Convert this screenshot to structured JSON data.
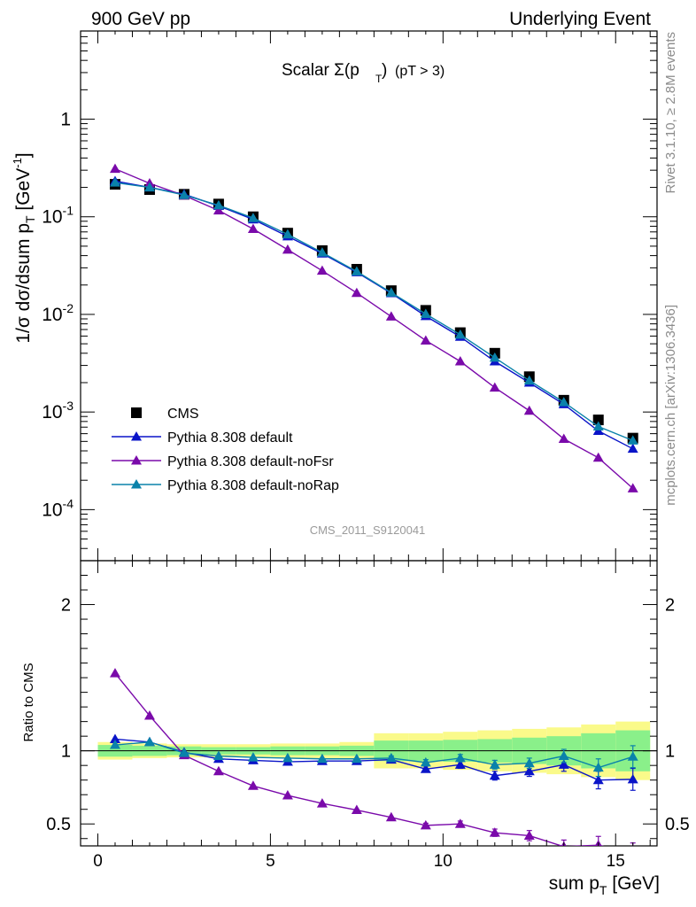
{
  "header": {
    "left": "900 GeV pp",
    "right": "Underlying Event"
  },
  "side_labels": {
    "top": "Rivet 3.1.10, ≥ 2.8M events",
    "bottom": "mcplots.cern.ch [arXiv:1306.3436]"
  },
  "plot_title": {
    "main": "Scalar Σ(p",
    "sub": "T",
    "close": ")",
    "cut": "(pT >  3)"
  },
  "analysis_tag": "CMS_2011_S9120041",
  "colors": {
    "data": "#000000",
    "default": "#0a14c8",
    "noFsr": "#7a0aaa",
    "noRap": "#0a82aa",
    "band_inner": "#8af08a",
    "band_outer": "#fafa8a"
  },
  "chart_data": [
    {
      "type": "scatter",
      "xlabel": "sum p_T [GeV]",
      "ylabel": "1/σ dσ/dsum p_T [GeV^-1]",
      "yscale": "log",
      "xlim": [
        -0.5,
        16.2
      ],
      "ylim": [
        3e-05,
        8
      ],
      "y_ticks": [
        "10^-4",
        "10^-3",
        "10^-2",
        "10^-1",
        "1"
      ],
      "legend_position": "bottom-left",
      "x": [
        0.5,
        1.5,
        2.5,
        3.5,
        4.5,
        5.5,
        6.5,
        7.5,
        8.5,
        9.5,
        10.5,
        11.5,
        12.5,
        13.5,
        14.5,
        15.5
      ],
      "series": [
        {
          "name": "CMS",
          "key": "data",
          "marker": "square",
          "values": [
            0.215,
            0.19,
            0.17,
            0.135,
            0.1,
            0.068,
            0.045,
            0.029,
            0.0175,
            0.011,
            0.0065,
            0.004,
            0.0023,
            0.00132,
            0.00083,
            0.00054
          ]
        },
        {
          "name": "Pythia 8.308 default",
          "key": "default",
          "marker": "triangle",
          "values": [
            0.232,
            0.2,
            0.17,
            0.129,
            0.094,
            0.063,
            0.042,
            0.027,
            0.0165,
            0.0096,
            0.0059,
            0.0033,
            0.002,
            0.0012,
            0.00064,
            0.00042
          ]
        },
        {
          "name": "Pythia 8.308 default-noFsr",
          "key": "noFsr",
          "marker": "triangle",
          "values": [
            0.31,
            0.22,
            0.165,
            0.116,
            0.075,
            0.046,
            0.028,
            0.0166,
            0.0095,
            0.0054,
            0.0033,
            0.00178,
            0.00103,
            0.00053,
            0.00034,
            0.000165
          ]
        },
        {
          "name": "Pythia 8.308 default-noRap",
          "key": "noRap",
          "marker": "triangle",
          "values": [
            0.224,
            0.2,
            0.167,
            0.131,
            0.097,
            0.066,
            0.043,
            0.0275,
            0.0167,
            0.0101,
            0.0062,
            0.0036,
            0.0021,
            0.00126,
            0.00071,
            0.00051
          ]
        }
      ]
    },
    {
      "type": "scatter",
      "xlabel": "sum p_T [GeV]",
      "ylabel": "Ratio to CMS",
      "xlim": [
        -0.5,
        16.2
      ],
      "ylim": [
        0.35,
        2.3
      ],
      "x_ticks": [
        0,
        5,
        10,
        15
      ],
      "y_ticks": [
        0.5,
        1,
        2
      ],
      "x": [
        0.5,
        1.5,
        2.5,
        3.5,
        4.5,
        5.5,
        6.5,
        7.5,
        8.5,
        9.5,
        10.5,
        11.5,
        12.5,
        13.5,
        14.5,
        15.5
      ],
      "uncertainty_bands": {
        "inner": [
          0.04,
          0.035,
          0.03,
          0.025,
          0.025,
          0.03,
          0.03,
          0.035,
          0.07,
          0.07,
          0.075,
          0.08,
          0.09,
          0.1,
          0.12,
          0.14
        ],
        "outer": [
          0.06,
          0.05,
          0.045,
          0.045,
          0.045,
          0.05,
          0.05,
          0.06,
          0.12,
          0.12,
          0.13,
          0.14,
          0.15,
          0.16,
          0.18,
          0.2
        ]
      },
      "series": [
        {
          "name": "Pythia 8.308 default",
          "key": "default",
          "values": [
            1.08,
            1.06,
            0.99,
            0.945,
            0.935,
            0.925,
            0.93,
            0.93,
            0.94,
            0.875,
            0.905,
            0.83,
            0.86,
            0.905,
            0.8,
            0.805
          ],
          "errors": [
            0.01,
            0.01,
            0.01,
            0.01,
            0.01,
            0.01,
            0.01,
            0.01,
            0.015,
            0.02,
            0.025,
            0.03,
            0.035,
            0.045,
            0.06,
            0.075
          ]
        },
        {
          "name": "Pythia 8.308 default-noFsr",
          "key": "noFsr",
          "values": [
            1.53,
            1.24,
            0.97,
            0.86,
            0.76,
            0.695,
            0.64,
            0.595,
            0.545,
            0.49,
            0.5,
            0.44,
            0.42,
            0.345,
            0.355,
            0.3
          ],
          "errors": [
            0.01,
            0.01,
            0.01,
            0.01,
            0.01,
            0.01,
            0.01,
            0.01,
            0.01,
            0.015,
            0.02,
            0.025,
            0.035,
            0.045,
            0.06,
            0.07
          ]
        },
        {
          "name": "Pythia 8.308 default-noRap",
          "key": "noRap",
          "values": [
            1.04,
            1.06,
            0.985,
            0.965,
            0.955,
            0.95,
            0.945,
            0.945,
            0.95,
            0.92,
            0.95,
            0.905,
            0.915,
            0.965,
            0.885,
            0.96
          ],
          "errors": [
            0.01,
            0.01,
            0.01,
            0.01,
            0.01,
            0.01,
            0.01,
            0.01,
            0.015,
            0.02,
            0.025,
            0.03,
            0.035,
            0.045,
            0.06,
            0.075
          ]
        }
      ]
    }
  ]
}
